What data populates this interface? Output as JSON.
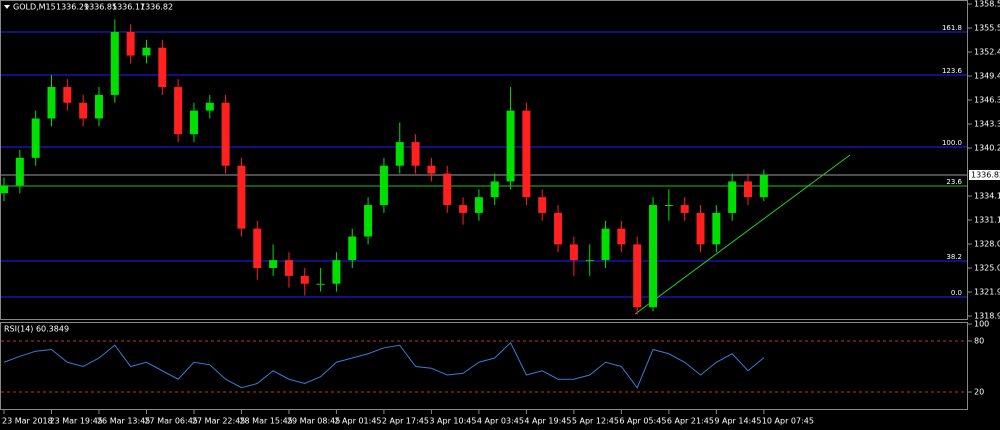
{
  "chart_data": [
    {
      "type": "candlestick",
      "header": {
        "symbol": "GOLD,M15",
        "values": [
          1336.29,
          1336.85,
          1336.17,
          1336.82
        ]
      },
      "categories": [
        "23 Mar 2018",
        null,
        null,
        "23 Mar 19:45",
        null,
        null,
        "26 Mar 13:45",
        null,
        null,
        "27 Mar 06:45",
        null,
        null,
        "27 Mar 22:45",
        null,
        null,
        "28 Mar 15:45",
        null,
        null,
        "29 Mar 08:45",
        null,
        null,
        "2 Apr 01:45",
        null,
        null,
        "2 Apr 17:45",
        null,
        null,
        "3 Apr 10:45",
        null,
        null,
        "4 Apr 03:45",
        null,
        null,
        "4 Apr 19:45",
        null,
        null,
        "5 Apr 12:45",
        null,
        null,
        "6 Apr 05:45",
        null,
        null,
        "6 Apr 21:45",
        null,
        null,
        "9 Apr 14:45",
        null,
        null,
        "10 Apr 07:45"
      ],
      "open": [
        1334.5,
        1335.5,
        1339,
        1344,
        1348,
        1346,
        1344,
        1347,
        1355,
        1352,
        1353,
        1348,
        1342,
        1345,
        1346,
        1338,
        1330,
        1325,
        1326,
        1324,
        1323,
        1323,
        1326,
        1329,
        1333,
        1338,
        1341,
        1338,
        1337,
        1333,
        1332,
        1334,
        1336,
        1345,
        1334,
        1332,
        1328,
        1326,
        1326,
        1330,
        1328,
        1320,
        1333,
        1333,
        1332,
        1328,
        1332,
        1336,
        1334
      ],
      "high": [
        1336.5,
        1340,
        1345,
        1349.5,
        1349,
        1347,
        1348,
        1356.6,
        1356,
        1354,
        1354,
        1349,
        1346,
        1347,
        1347,
        1339,
        1331,
        1328,
        1327,
        1325,
        1325,
        1327,
        1330,
        1334,
        1339,
        1343.5,
        1342,
        1339,
        1338,
        1334,
        1335,
        1337,
        1348,
        1346,
        1335,
        1333,
        1329,
        1328,
        1331,
        1331,
        1329,
        1334,
        1335,
        1334,
        1333,
        1333,
        1337,
        1337,
        1337.5
      ],
      "low": [
        1333.5,
        1334.5,
        1338,
        1343,
        1345,
        1343,
        1343,
        1346,
        1351,
        1351,
        1347,
        1341,
        1341,
        1344,
        1337,
        1329,
        1323.5,
        1324,
        1322.5,
        1321.5,
        1322,
        1322,
        1325,
        1328,
        1332,
        1337,
        1337,
        1336,
        1332,
        1330.5,
        1331,
        1333,
        1335,
        1333,
        1331,
        1327,
        1324,
        1324,
        1325,
        1327,
        1319.1,
        1319.5,
        1331,
        1331,
        1327,
        1327,
        1331,
        1333,
        1333.5
      ],
      "close": [
        1335.5,
        1339,
        1344,
        1348,
        1346,
        1344,
        1347,
        1355,
        1352,
        1353,
        1348,
        1342,
        1345,
        1346,
        1338,
        1330,
        1325,
        1326,
        1324,
        1323,
        1323,
        1326,
        1329,
        1333,
        1338,
        1341,
        1338,
        1337,
        1333,
        1332,
        1334,
        1336,
        1345,
        1334,
        1332,
        1328,
        1326,
        1326,
        1330,
        1328,
        1320,
        1333,
        1333,
        1332,
        1328,
        1332,
        1336,
        1334,
        1336.82
      ],
      "up_color": "#00e000",
      "down_color": "#ff2020",
      "ylim": [
        1318.39,
        1359.06
      ],
      "yticks": [
        1358.55,
        {
          "value": 1355.5,
          "label": "1355.50"
        },
        1352.45,
        {
          "value": 1349.4,
          "label": "1349.40"
        },
        1346.35,
        {
          "value": 1343.3,
          "label": "1343.30"
        },
        1340.25,
        1334.15,
        {
          "value": 1331.1,
          "label": "1331.10"
        },
        1328.05,
        {
          "value": 1325,
          "label": "1325.00"
        },
        1321.95,
        {
          "value": 1318.9,
          "label": "1318.90"
        }
      ],
      "current_price": 1336.82,
      "fib_levels": [
        {
          "label": "161.8",
          "price": 1354.99,
          "color": "#2020ff"
        },
        {
          "label": "123.6",
          "price": 1349.53,
          "color": "#2020ff"
        },
        {
          "label": "100.0",
          "price": 1340.38,
          "color": "#2020ff"
        },
        {
          "label": "23.6",
          "price": 1335.42,
          "color": "#20c020"
        },
        {
          "label": "38.2",
          "price": 1325.89,
          "color": "#2020ff"
        },
        {
          "label": "0.0",
          "price": 1321.31,
          "color": "#2020ff"
        }
      ],
      "trendline": [
        1319.15,
        1339.36
      ],
      "trendline_color": "#20d020"
    },
    {
      "type": "line",
      "title": "RSI(14) 60.3849",
      "values": [
        55,
        62,
        68,
        70,
        55,
        50,
        60,
        75,
        50,
        55,
        45,
        35,
        55,
        52,
        35,
        25,
        30,
        45,
        35,
        30,
        38,
        55,
        60,
        65,
        72,
        75,
        50,
        48,
        40,
        42,
        55,
        60,
        78,
        40,
        45,
        35,
        35,
        40,
        55,
        50,
        25,
        70,
        65,
        55,
        40,
        55,
        65,
        45,
        60.3849
      ],
      "color": "#3a7bd5",
      "ylim": [
        0,
        100
      ],
      "yticks": [
        100,
        80,
        20
      ],
      "dashed_levels": [
        80,
        20
      ],
      "level_color": "#c03030"
    }
  ]
}
